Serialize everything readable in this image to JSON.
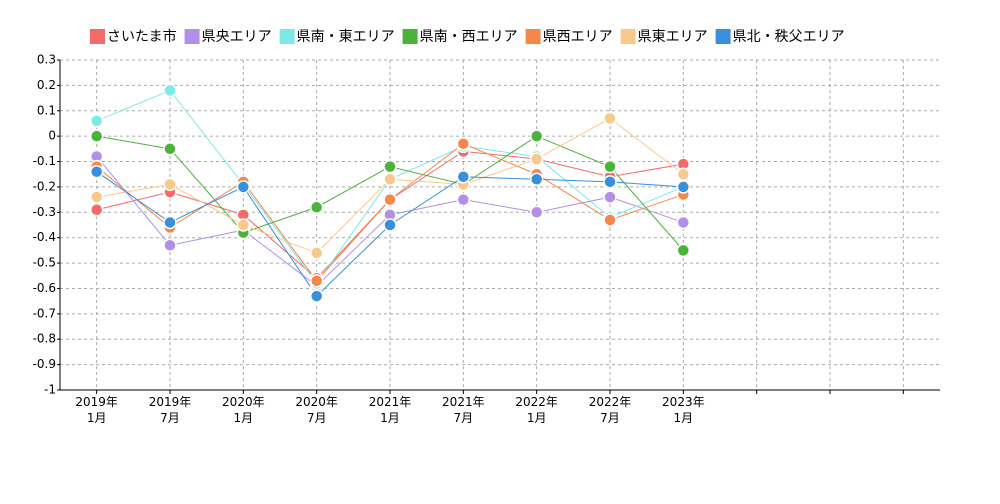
{
  "chart_data": {
    "type": "line",
    "categories": [
      "2019年\n1月",
      "2019年\n7月",
      "2020年\n1月",
      "2020年\n7月",
      "2021年\n1月",
      "2021年\n7月",
      "2022年\n1月",
      "2022年\n7月",
      "2023年\n1月",
      null,
      null,
      null
    ],
    "series": [
      {
        "name": "さいたま市",
        "color": "#f26b6b",
        "values": [
          -0.29,
          -0.22,
          -0.31,
          -0.56,
          -0.25,
          -0.06,
          -0.09,
          -0.16,
          -0.11,
          null,
          null,
          null
        ]
      },
      {
        "name": "県央エリア",
        "color": "#b38fea",
        "values": [
          -0.08,
          -0.43,
          -0.37,
          -0.59,
          -0.31,
          -0.25,
          -0.3,
          -0.24,
          -0.34,
          null,
          null,
          null
        ]
      },
      {
        "name": "県南・東エリア",
        "color": "#7de8e8",
        "values": [
          0.06,
          0.18,
          -0.19,
          -0.58,
          -0.17,
          -0.04,
          -0.08,
          -0.32,
          -0.2,
          null,
          null,
          null
        ]
      },
      {
        "name": "県南・西エリア",
        "color": "#4ab33a",
        "values": [
          0,
          -0.05,
          -0.38,
          -0.28,
          -0.12,
          -0.19,
          0,
          -0.12,
          -0.45,
          null,
          null,
          null
        ]
      },
      {
        "name": "県西エリア",
        "color": "#f5874a",
        "values": [
          -0.12,
          -0.36,
          -0.18,
          -0.57,
          -0.25,
          -0.03,
          -0.15,
          -0.33,
          -0.23,
          null,
          null,
          null
        ]
      },
      {
        "name": "県東エリア",
        "color": "#f9c98c",
        "values": [
          -0.24,
          -0.19,
          -0.35,
          -0.46,
          -0.17,
          -0.19,
          -0.09,
          0.07,
          -0.15,
          null,
          null,
          null
        ]
      },
      {
        "name": "県北・秩父エリア",
        "color": "#3a8fdc",
        "values": [
          -0.14,
          -0.34,
          -0.2,
          -0.63,
          -0.35,
          -0.16,
          -0.17,
          -0.18,
          -0.2,
          null,
          null,
          null
        ]
      }
    ],
    "ylim": [
      -1,
      0.3
    ],
    "yticks": [
      0.3,
      0.2,
      0.1,
      0,
      -0.1,
      -0.2,
      -0.3,
      -0.4,
      -0.5,
      -0.6,
      -0.7,
      -0.8,
      -0.9,
      -1
    ],
    "grid": true,
    "legend": "top"
  }
}
